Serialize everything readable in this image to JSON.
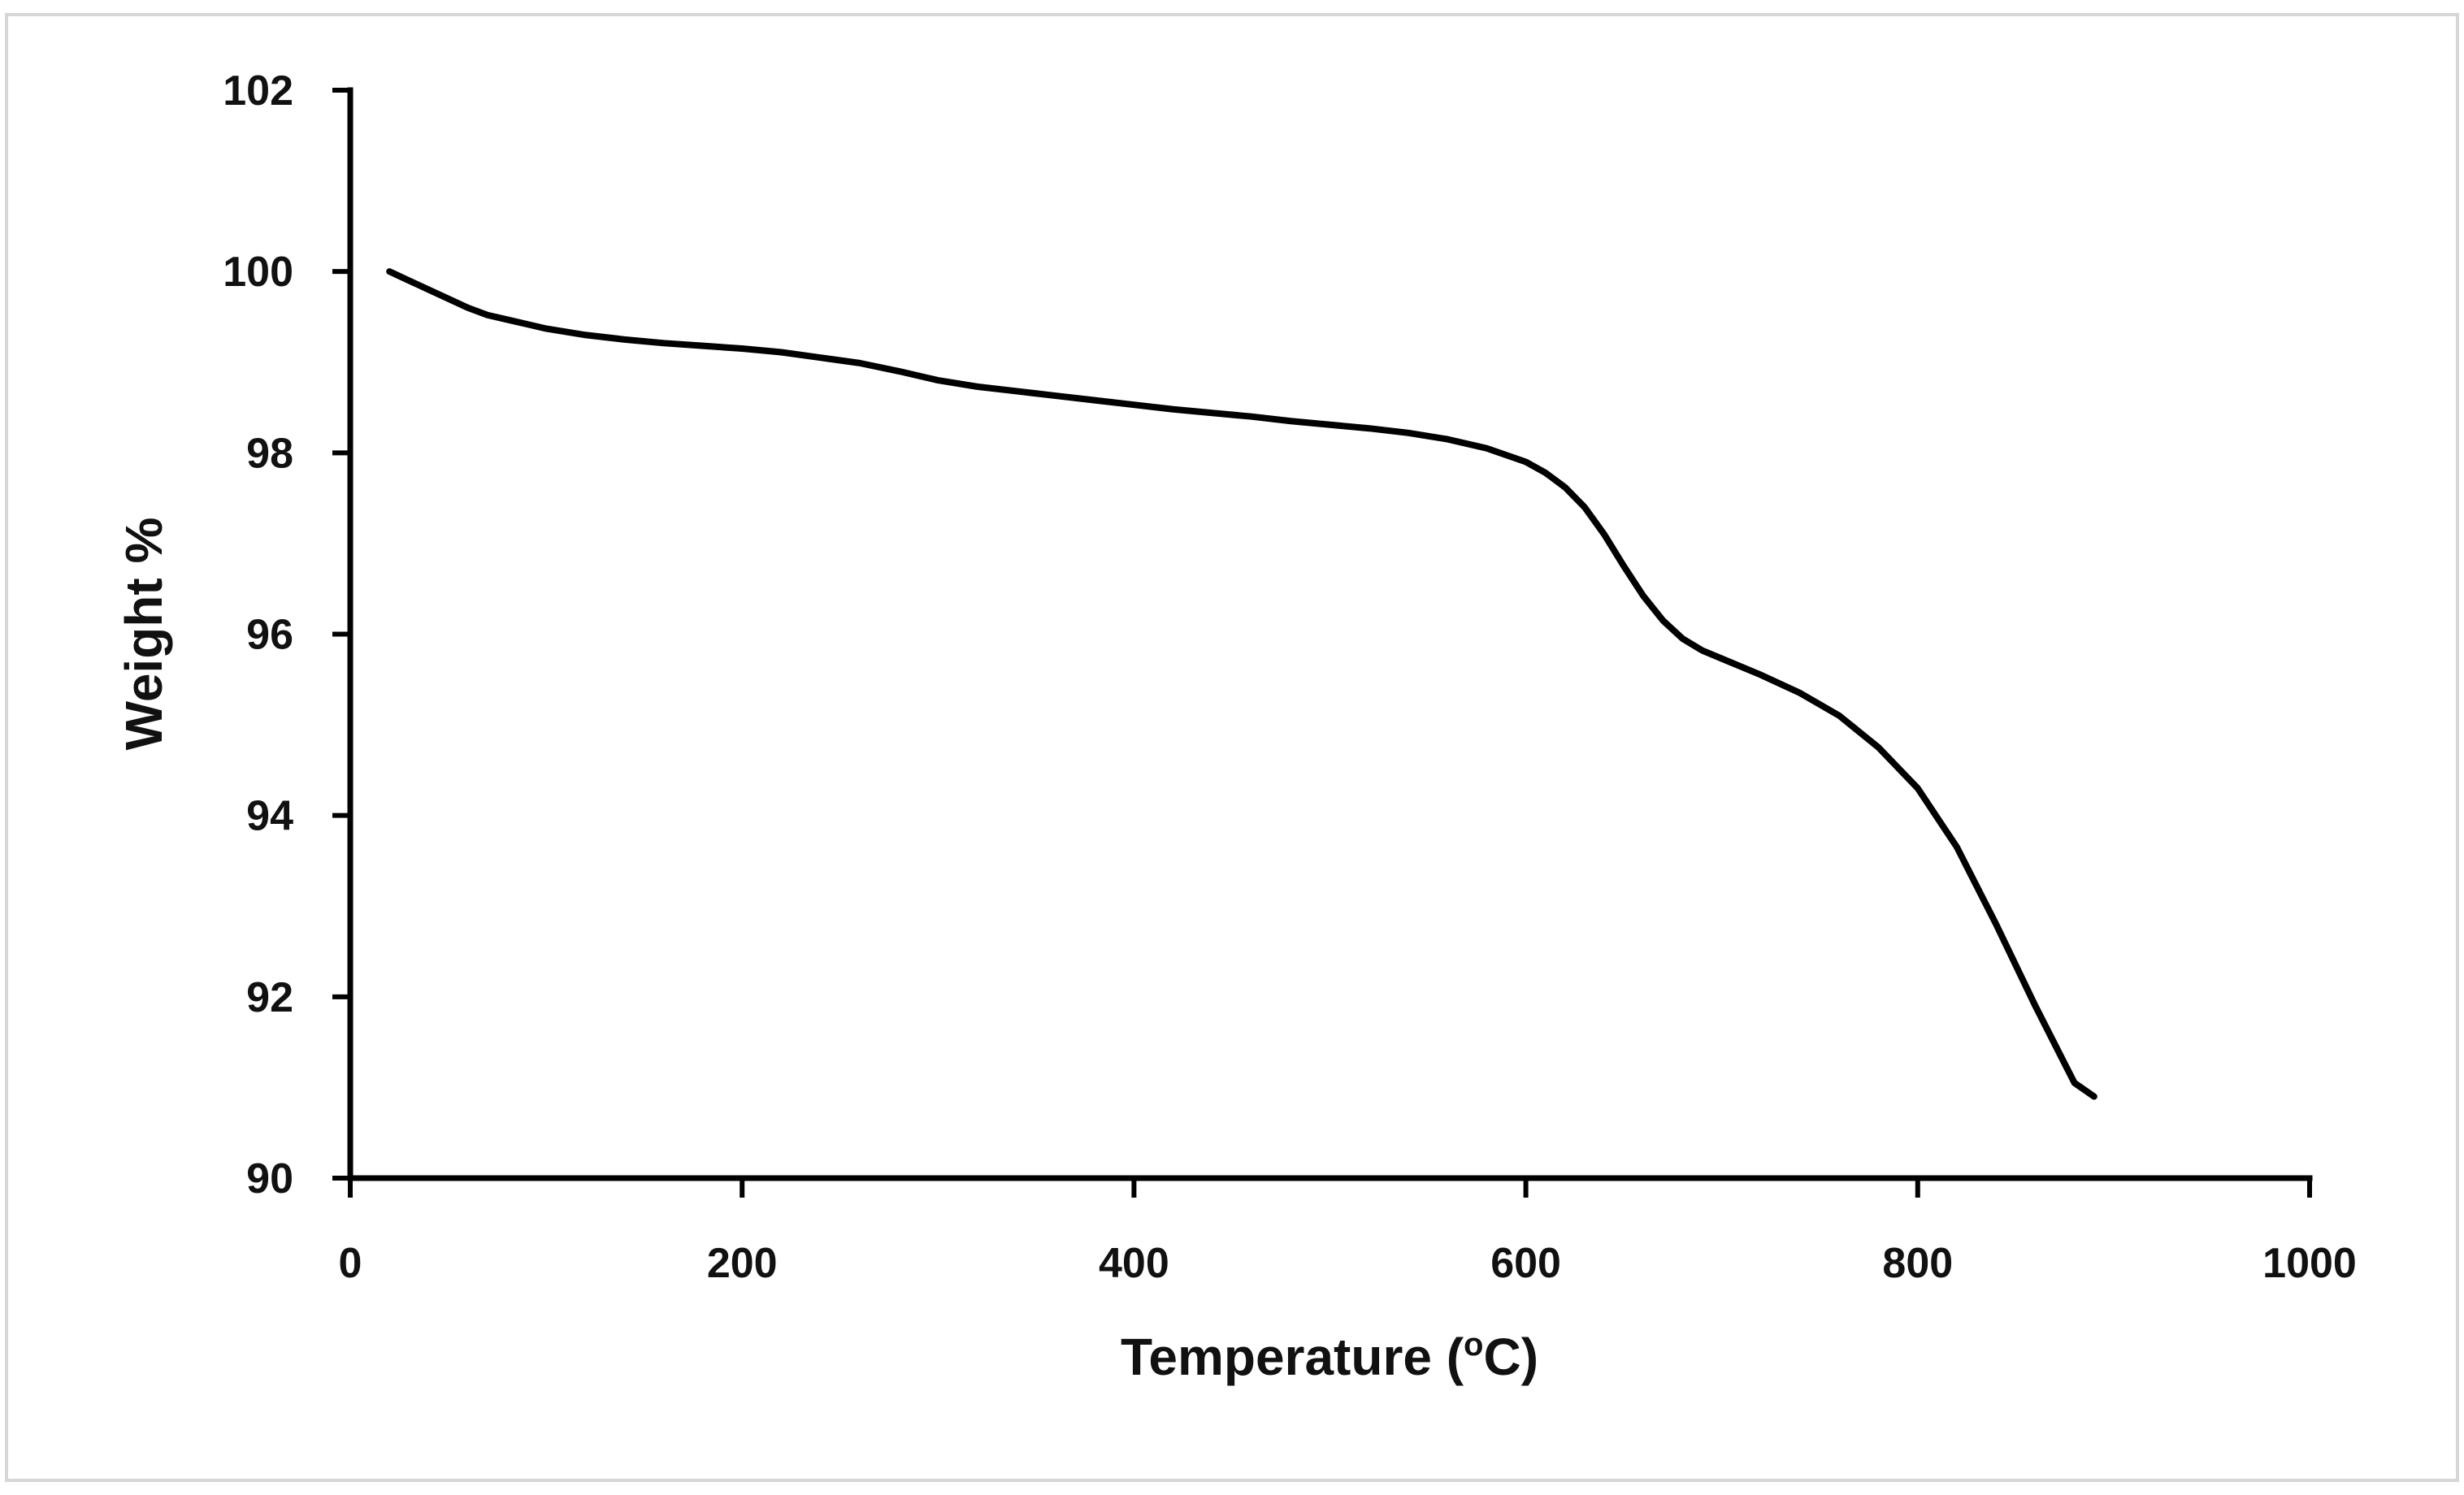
{
  "chart_data": {
    "type": "line",
    "title": "",
    "xlabel": "Temperature (",
    "xlabel_superscript": "o",
    "xlabel_suffix": "C)",
    "ylabel": "Weight %",
    "xlim": [
      0,
      1000
    ],
    "ylim": [
      90,
      102
    ],
    "x_ticks": [
      "0",
      "200",
      "400",
      "600",
      "800",
      "1000"
    ],
    "y_ticks": [
      "90",
      "92",
      "94",
      "96",
      "98",
      "100",
      "102"
    ],
    "grid": false,
    "legend": "none",
    "series": [
      {
        "name": "Weight %",
        "x": [
          20,
          30,
          40,
          50,
          60,
          70,
          80,
          90,
          100,
          120,
          140,
          160,
          180,
          200,
          220,
          240,
          260,
          280,
          300,
          320,
          340,
          360,
          380,
          400,
          420,
          440,
          460,
          480,
          500,
          520,
          540,
          560,
          580,
          600,
          610,
          620,
          630,
          640,
          650,
          660,
          670,
          680,
          690,
          700,
          720,
          740,
          760,
          780,
          800,
          820,
          840,
          860,
          880,
          890
        ],
        "values": [
          100.0,
          99.9,
          99.8,
          99.7,
          99.6,
          99.52,
          99.47,
          99.42,
          99.37,
          99.3,
          99.25,
          99.21,
          99.18,
          99.15,
          99.11,
          99.05,
          98.99,
          98.9,
          98.8,
          98.73,
          98.68,
          98.63,
          98.58,
          98.53,
          98.48,
          98.44,
          98.4,
          98.35,
          98.31,
          98.27,
          98.22,
          98.15,
          98.05,
          97.9,
          97.78,
          97.62,
          97.4,
          97.1,
          96.75,
          96.42,
          96.15,
          95.95,
          95.82,
          95.73,
          95.55,
          95.35,
          95.1,
          94.75,
          94.3,
          93.65,
          92.8,
          91.9,
          91.05,
          90.9
        ]
      }
    ]
  }
}
